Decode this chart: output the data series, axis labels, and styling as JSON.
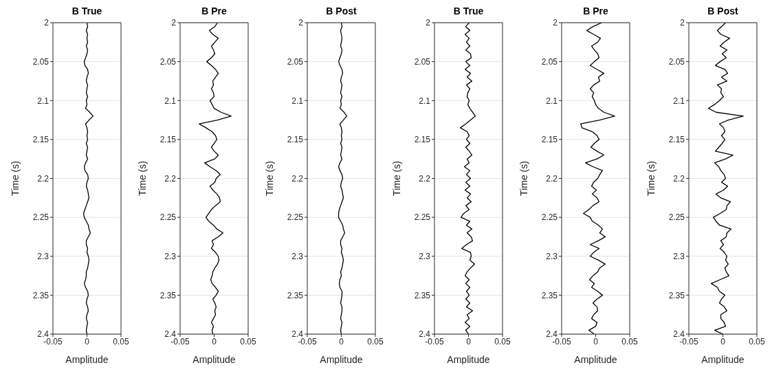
{
  "chart_data": [
    {
      "type": "line",
      "title": "B True",
      "xlabel": "Amplitude",
      "ylabel": "Time (s)",
      "xlim": [
        -0.05,
        0.05
      ],
      "xticks": [
        -0.05,
        0,
        0.05
      ],
      "ylim": [
        2.4,
        2
      ],
      "yticks": [
        2,
        2.05,
        2.1,
        2.15,
        2.2,
        2.25,
        2.3,
        2.35,
        2.4
      ],
      "grid": "y",
      "series": [
        {
          "color": "#000000",
          "x": [
            0,
            0.001,
            -0.001,
            0.001,
            0,
            0.001,
            -0.001,
            0.001,
            0,
            -0.002,
            -0.004,
            -0.003,
            0.001,
            0.002,
            0,
            -0.001,
            0.001,
            0,
            -0.001,
            0.001,
            -0.001,
            0,
            -0.002,
            0.004,
            0.009,
            0.003,
            -0.002,
            0,
            0.001,
            0,
            0.001,
            -0.001,
            0.001,
            0,
            -0.001,
            0.001,
            -0.002,
            -0.004,
            -0.003,
            0.001,
            0.002,
            0,
            -0.001,
            0.001,
            0.002,
            0.003,
            0.001,
            -0.001,
            -0.003,
            -0.005,
            -0.004,
            -0.001,
            0.002,
            0.003,
            0.005,
            0.002,
            -0.001,
            -0.001,
            0.001,
            0,
            0.002,
            0.003,
            0.002,
            0.001,
            -0.001,
            -0.001,
            -0.002,
            -0.004,
            -0.002,
            0.001,
            0.002,
            0,
            -0.001,
            0.001,
            0.002,
            0,
            -0.001,
            0.001,
            0,
            -0.001,
            0
          ],
          "values": [
            2,
            2.005,
            2.01,
            2.015,
            2.02,
            2.025,
            2.03,
            2.035,
            2.04,
            2.045,
            2.05,
            2.055,
            2.06,
            2.065,
            2.07,
            2.075,
            2.08,
            2.085,
            2.09,
            2.095,
            2.1,
            2.105,
            2.11,
            2.115,
            2.12,
            2.125,
            2.13,
            2.135,
            2.14,
            2.145,
            2.15,
            2.155,
            2.16,
            2.165,
            2.17,
            2.175,
            2.18,
            2.185,
            2.19,
            2.195,
            2.2,
            2.205,
            2.21,
            2.215,
            2.22,
            2.225,
            2.23,
            2.235,
            2.24,
            2.245,
            2.25,
            2.255,
            2.26,
            2.265,
            2.27,
            2.275,
            2.28,
            2.285,
            2.29,
            2.295,
            2.3,
            2.305,
            2.31,
            2.315,
            2.32,
            2.325,
            2.33,
            2.335,
            2.34,
            2.345,
            2.35,
            2.355,
            2.36,
            2.365,
            2.37,
            2.375,
            2.38,
            2.385,
            2.39,
            2.395,
            2.4
          ]
        }
      ]
    },
    {
      "type": "line",
      "title": "B Pre",
      "xlabel": "Amplitude",
      "ylabel": "Time (s)",
      "xlim": [
        -0.05,
        0.05
      ],
      "xticks": [
        -0.05,
        0,
        0.05
      ],
      "ylim": [
        2.4,
        2
      ],
      "yticks": [
        2,
        2.05,
        2.1,
        2.15,
        2.2,
        2.25,
        2.3,
        2.35,
        2.4
      ],
      "grid": "y",
      "series": [
        {
          "color": "#000000",
          "x": [
            0.005,
            0.001,
            -0.007,
            -0.002,
            0.006,
            0.001,
            -0.004,
            -0.001,
            0.001,
            -0.004,
            -0.011,
            -0.004,
            0.002,
            0.006,
            0.002,
            -0.002,
            -0.001,
            -0.004,
            -0.001,
            0,
            -0.006,
            -0.003,
            0,
            0.01,
            0.025,
            0.005,
            -0.022,
            -0.012,
            -0.003,
            0.002,
            0.004,
            0,
            -0.004,
            0,
            0.006,
            0.001,
            -0.014,
            -0.006,
            0.003,
            0.009,
            0.003,
            0.001,
            -0.006,
            -0.002,
            0.004,
            0.008,
            0.009,
            0.002,
            -0.004,
            -0.008,
            -0.012,
            -0.008,
            -0.001,
            0.004,
            0.013,
            0.006,
            -0.003,
            -0.001,
            -0.004,
            0.002,
            0.006,
            0.007,
            0.005,
            0.001,
            -0.002,
            -0.003,
            -0.005,
            -0.003,
            0.002,
            0.006,
            0.003,
            -0.002,
            0.001,
            0.003,
            0.001,
            0.002,
            -0.001,
            -0.004,
            -0.001,
            -0.003,
            -0.002
          ],
          "values": [
            2,
            2.005,
            2.01,
            2.015,
            2.02,
            2.025,
            2.03,
            2.035,
            2.04,
            2.045,
            2.05,
            2.055,
            2.06,
            2.065,
            2.07,
            2.075,
            2.08,
            2.085,
            2.09,
            2.095,
            2.1,
            2.105,
            2.11,
            2.115,
            2.12,
            2.125,
            2.13,
            2.135,
            2.14,
            2.145,
            2.15,
            2.155,
            2.16,
            2.165,
            2.17,
            2.175,
            2.18,
            2.185,
            2.19,
            2.195,
            2.2,
            2.205,
            2.21,
            2.215,
            2.22,
            2.225,
            2.23,
            2.235,
            2.24,
            2.245,
            2.25,
            2.255,
            2.26,
            2.265,
            2.27,
            2.275,
            2.28,
            2.285,
            2.29,
            2.295,
            2.3,
            2.305,
            2.31,
            2.315,
            2.32,
            2.325,
            2.33,
            2.335,
            2.34,
            2.345,
            2.35,
            2.355,
            2.36,
            2.365,
            2.37,
            2.375,
            2.38,
            2.385,
            2.39,
            2.395,
            2.4
          ]
        }
      ]
    },
    {
      "type": "line",
      "title": "B Post",
      "xlabel": "Amplitude",
      "ylabel": "Time (s)",
      "xlim": [
        -0.05,
        0.05
      ],
      "xticks": [
        -0.05,
        0,
        0.05
      ],
      "ylim": [
        2.4,
        2
      ],
      "yticks": [
        2,
        2.05,
        2.1,
        2.15,
        2.2,
        2.25,
        2.3,
        2.35,
        2.4
      ],
      "grid": "y",
      "series": [
        {
          "color": "#000000",
          "x": [
            0,
            0.001,
            -0.001,
            0,
            0.001,
            0,
            -0.001,
            0.001,
            0,
            -0.002,
            -0.004,
            -0.002,
            0.001,
            0.002,
            0,
            -0.001,
            0.001,
            0,
            -0.001,
            0.001,
            -0.001,
            0,
            -0.002,
            0.004,
            0.008,
            0.003,
            -0.002,
            0,
            0.001,
            0,
            0.001,
            -0.001,
            0.001,
            0,
            -0.001,
            0.001,
            -0.002,
            -0.004,
            -0.002,
            0.001,
            0.002,
            0,
            -0.001,
            0.001,
            0.002,
            0.003,
            0.001,
            -0.001,
            -0.003,
            -0.004,
            -0.004,
            -0.001,
            0.002,
            0.003,
            0.005,
            0.002,
            -0.001,
            -0.001,
            0.001,
            0,
            0.002,
            0.003,
            0.002,
            0.001,
            -0.001,
            0,
            -0.002,
            -0.003,
            -0.002,
            0.001,
            0.001,
            0,
            -0.001,
            0.001,
            0.001,
            0,
            -0.001,
            0.001,
            0,
            -0.001,
            0
          ],
          "values": [
            2,
            2.005,
            2.01,
            2.015,
            2.02,
            2.025,
            2.03,
            2.035,
            2.04,
            2.045,
            2.05,
            2.055,
            2.06,
            2.065,
            2.07,
            2.075,
            2.08,
            2.085,
            2.09,
            2.095,
            2.1,
            2.105,
            2.11,
            2.115,
            2.12,
            2.125,
            2.13,
            2.135,
            2.14,
            2.145,
            2.15,
            2.155,
            2.16,
            2.165,
            2.17,
            2.175,
            2.18,
            2.185,
            2.19,
            2.195,
            2.2,
            2.205,
            2.21,
            2.215,
            2.22,
            2.225,
            2.23,
            2.235,
            2.24,
            2.245,
            2.25,
            2.255,
            2.26,
            2.265,
            2.27,
            2.275,
            2.28,
            2.285,
            2.29,
            2.295,
            2.3,
            2.305,
            2.31,
            2.315,
            2.32,
            2.325,
            2.33,
            2.335,
            2.34,
            2.345,
            2.35,
            2.355,
            2.36,
            2.365,
            2.37,
            2.375,
            2.38,
            2.385,
            2.39,
            2.395,
            2.4
          ]
        }
      ]
    },
    {
      "type": "line",
      "title": "B True",
      "xlabel": "Amplitude",
      "ylabel": "Time (s)",
      "xlim": [
        -0.05,
        0.05
      ],
      "xticks": [
        -0.05,
        0,
        0.05
      ],
      "ylim": [
        2.4,
        2
      ],
      "yticks": [
        2,
        2.05,
        2.1,
        2.15,
        2.2,
        2.25,
        2.3,
        2.35,
        2.4
      ],
      "grid": "y",
      "series": [
        {
          "color": "#000000",
          "x": [
            0.001,
            -0.004,
            0.002,
            -0.005,
            0.001,
            -0.003,
            0.002,
            -0.004,
            0.003,
            0.004,
            -0.004,
            0.002,
            -0.005,
            0.003,
            -0.002,
            0.005,
            -0.003,
            0.002,
            -0.001,
            -0.002,
            0.001,
            -0.001,
            0.002,
            0.006,
            0.01,
            0.003,
            -0.004,
            -0.012,
            -0.002,
            0.001,
            -0.003,
            0.002,
            -0.004,
            0.001,
            0.005,
            -0.002,
            0.001,
            -0.006,
            0.002,
            -0.003,
            0.003,
            -0.004,
            0.002,
            -0.005,
            0.003,
            -0.002,
            0.004,
            -0.004,
            0.001,
            -0.007,
            -0.011,
            0.002,
            -0.003,
            0.005,
            -0.002,
            0.004,
            0.006,
            -0.003,
            -0.01,
            0.003,
            0.004,
            0.002,
            0.009,
            0.003,
            -0.002,
            -0.005,
            0.001,
            -0.004,
            0.002,
            -0.003,
            0.001,
            -0.004,
            0.002,
            -0.003,
            0.006,
            -0.002,
            0.001,
            -0.005,
            0.002,
            -0.004,
            0
          ],
          "values": [
            2,
            2.005,
            2.01,
            2.015,
            2.02,
            2.025,
            2.03,
            2.035,
            2.04,
            2.045,
            2.05,
            2.055,
            2.06,
            2.065,
            2.07,
            2.075,
            2.08,
            2.085,
            2.09,
            2.095,
            2.1,
            2.105,
            2.11,
            2.115,
            2.12,
            2.125,
            2.13,
            2.135,
            2.14,
            2.145,
            2.15,
            2.155,
            2.16,
            2.165,
            2.17,
            2.175,
            2.18,
            2.185,
            2.19,
            2.195,
            2.2,
            2.205,
            2.21,
            2.215,
            2.22,
            2.225,
            2.23,
            2.235,
            2.24,
            2.245,
            2.25,
            2.255,
            2.26,
            2.265,
            2.27,
            2.275,
            2.28,
            2.285,
            2.29,
            2.295,
            2.3,
            2.305,
            2.31,
            2.315,
            2.32,
            2.325,
            2.33,
            2.335,
            2.34,
            2.345,
            2.35,
            2.355,
            2.36,
            2.365,
            2.37,
            2.375,
            2.38,
            2.385,
            2.39,
            2.395,
            2.4
          ]
        }
      ]
    },
    {
      "type": "line",
      "title": "B Pre",
      "xlabel": "Amplitude",
      "ylabel": "Time (s)",
      "xlim": [
        -0.05,
        0.05
      ],
      "xticks": [
        -0.05,
        0,
        0.05
      ],
      "ylim": [
        2.4,
        2
      ],
      "yticks": [
        2,
        2.05,
        2.1,
        2.15,
        2.2,
        2.25,
        2.3,
        2.35,
        2.4
      ],
      "grid": "y",
      "series": [
        {
          "color": "#000000",
          "x": [
            0.009,
            -0.004,
            -0.013,
            -0.003,
            0.007,
            0.003,
            -0.006,
            -0.002,
            0.003,
            0.005,
            -0.002,
            -0.008,
            0.002,
            0.012,
            0.004,
            0.006,
            -0.003,
            -0.008,
            -0.003,
            -0.005,
            -0.002,
            0,
            0.004,
            0.012,
            0.028,
            0.006,
            -0.022,
            -0.02,
            -0.005,
            0.002,
            0.005,
            -0.002,
            -0.007,
            0.002,
            0.012,
            0.002,
            -0.015,
            -0.004,
            0.01,
            0.006,
            0.003,
            -0.003,
            -0.006,
            0.001,
            -0.005,
            0.002,
            0.005,
            -0.004,
            -0.01,
            -0.018,
            -0.008,
            -0.005,
            0.004,
            0.01,
            0.006,
            0.014,
            0.004,
            -0.008,
            0.005,
            -0.003,
            -0.008,
            0.004,
            0.014,
            0.006,
            0.003,
            -0.004,
            -0.009,
            -0.002,
            -0.006,
            0.003,
            0.01,
            0.002,
            -0.004,
            0.002,
            0.003,
            -0.003,
            -0.006,
            0.002,
            0,
            -0.01,
            -0.002
          ],
          "values": [
            2,
            2.005,
            2.01,
            2.015,
            2.02,
            2.025,
            2.03,
            2.035,
            2.04,
            2.045,
            2.05,
            2.055,
            2.06,
            2.065,
            2.07,
            2.075,
            2.08,
            2.085,
            2.09,
            2.095,
            2.1,
            2.105,
            2.11,
            2.115,
            2.12,
            2.125,
            2.13,
            2.135,
            2.14,
            2.145,
            2.15,
            2.155,
            2.16,
            2.165,
            2.17,
            2.175,
            2.18,
            2.185,
            2.19,
            2.195,
            2.2,
            2.205,
            2.21,
            2.215,
            2.22,
            2.225,
            2.23,
            2.235,
            2.24,
            2.245,
            2.25,
            2.255,
            2.26,
            2.265,
            2.27,
            2.275,
            2.28,
            2.285,
            2.29,
            2.295,
            2.3,
            2.305,
            2.31,
            2.315,
            2.32,
            2.325,
            2.33,
            2.335,
            2.34,
            2.345,
            2.35,
            2.355,
            2.36,
            2.365,
            2.37,
            2.375,
            2.38,
            2.385,
            2.39,
            2.395,
            2.4
          ]
        }
      ]
    },
    {
      "type": "line",
      "title": "B Post",
      "xlabel": "Amplitude",
      "ylabel": "Time (s)",
      "xlim": [
        -0.05,
        0.05
      ],
      "xticks": [
        -0.05,
        0,
        0.05
      ],
      "ylim": [
        2.4,
        2
      ],
      "yticks": [
        2,
        2.05,
        2.1,
        2.15,
        2.2,
        2.25,
        2.3,
        2.35,
        2.4
      ],
      "grid": "y",
      "series": [
        {
          "color": "#000000",
          "x": [
            0.004,
            -0.002,
            -0.008,
            -0.003,
            0.01,
            0.002,
            -0.004,
            0.006,
            -0.001,
            0.005,
            -0.004,
            -0.011,
            0.003,
            0.007,
            -0.002,
            0.006,
            -0.008,
            -0.002,
            -0.003,
            0.001,
            -0.005,
            -0.012,
            -0.021,
            -0.01,
            0.03,
            0.008,
            -0.005,
            0.001,
            0.003,
            -0.002,
            0.003,
            -0.001,
            -0.006,
            -0.011,
            0.015,
            0.004,
            -0.012,
            -0.006,
            -0.003,
            0.002,
            0.004,
            -0.002,
            0.007,
            0.001,
            -0.01,
            -0.003,
            0.011,
            0.006,
            0.005,
            -0.004,
            -0.014,
            -0.01,
            -0.005,
            0.012,
            0.006,
            0.005,
            -0.003,
            0.001,
            -0.004,
            0.002,
            0.006,
            0.004,
            0.008,
            0.003,
            0.005,
            0.009,
            -0.004,
            -0.017,
            -0.008,
            -0.005,
            0.003,
            -0.002,
            -0.005,
            0.002,
            0.006,
            -0.003,
            -0.003,
            0.002,
            0.004,
            -0.012,
            0
          ],
          "values": [
            2,
            2.005,
            2.01,
            2.015,
            2.02,
            2.025,
            2.03,
            2.035,
            2.04,
            2.045,
            2.05,
            2.055,
            2.06,
            2.065,
            2.07,
            2.075,
            2.08,
            2.085,
            2.09,
            2.095,
            2.1,
            2.105,
            2.11,
            2.115,
            2.12,
            2.125,
            2.13,
            2.135,
            2.14,
            2.145,
            2.15,
            2.155,
            2.16,
            2.165,
            2.17,
            2.175,
            2.18,
            2.185,
            2.19,
            2.195,
            2.2,
            2.205,
            2.21,
            2.215,
            2.22,
            2.225,
            2.23,
            2.235,
            2.24,
            2.245,
            2.25,
            2.255,
            2.26,
            2.265,
            2.27,
            2.275,
            2.28,
            2.285,
            2.29,
            2.295,
            2.3,
            2.305,
            2.31,
            2.315,
            2.32,
            2.325,
            2.33,
            2.335,
            2.34,
            2.345,
            2.35,
            2.355,
            2.36,
            2.365,
            2.37,
            2.375,
            2.38,
            2.385,
            2.39,
            2.395,
            2.4
          ]
        }
      ]
    }
  ]
}
